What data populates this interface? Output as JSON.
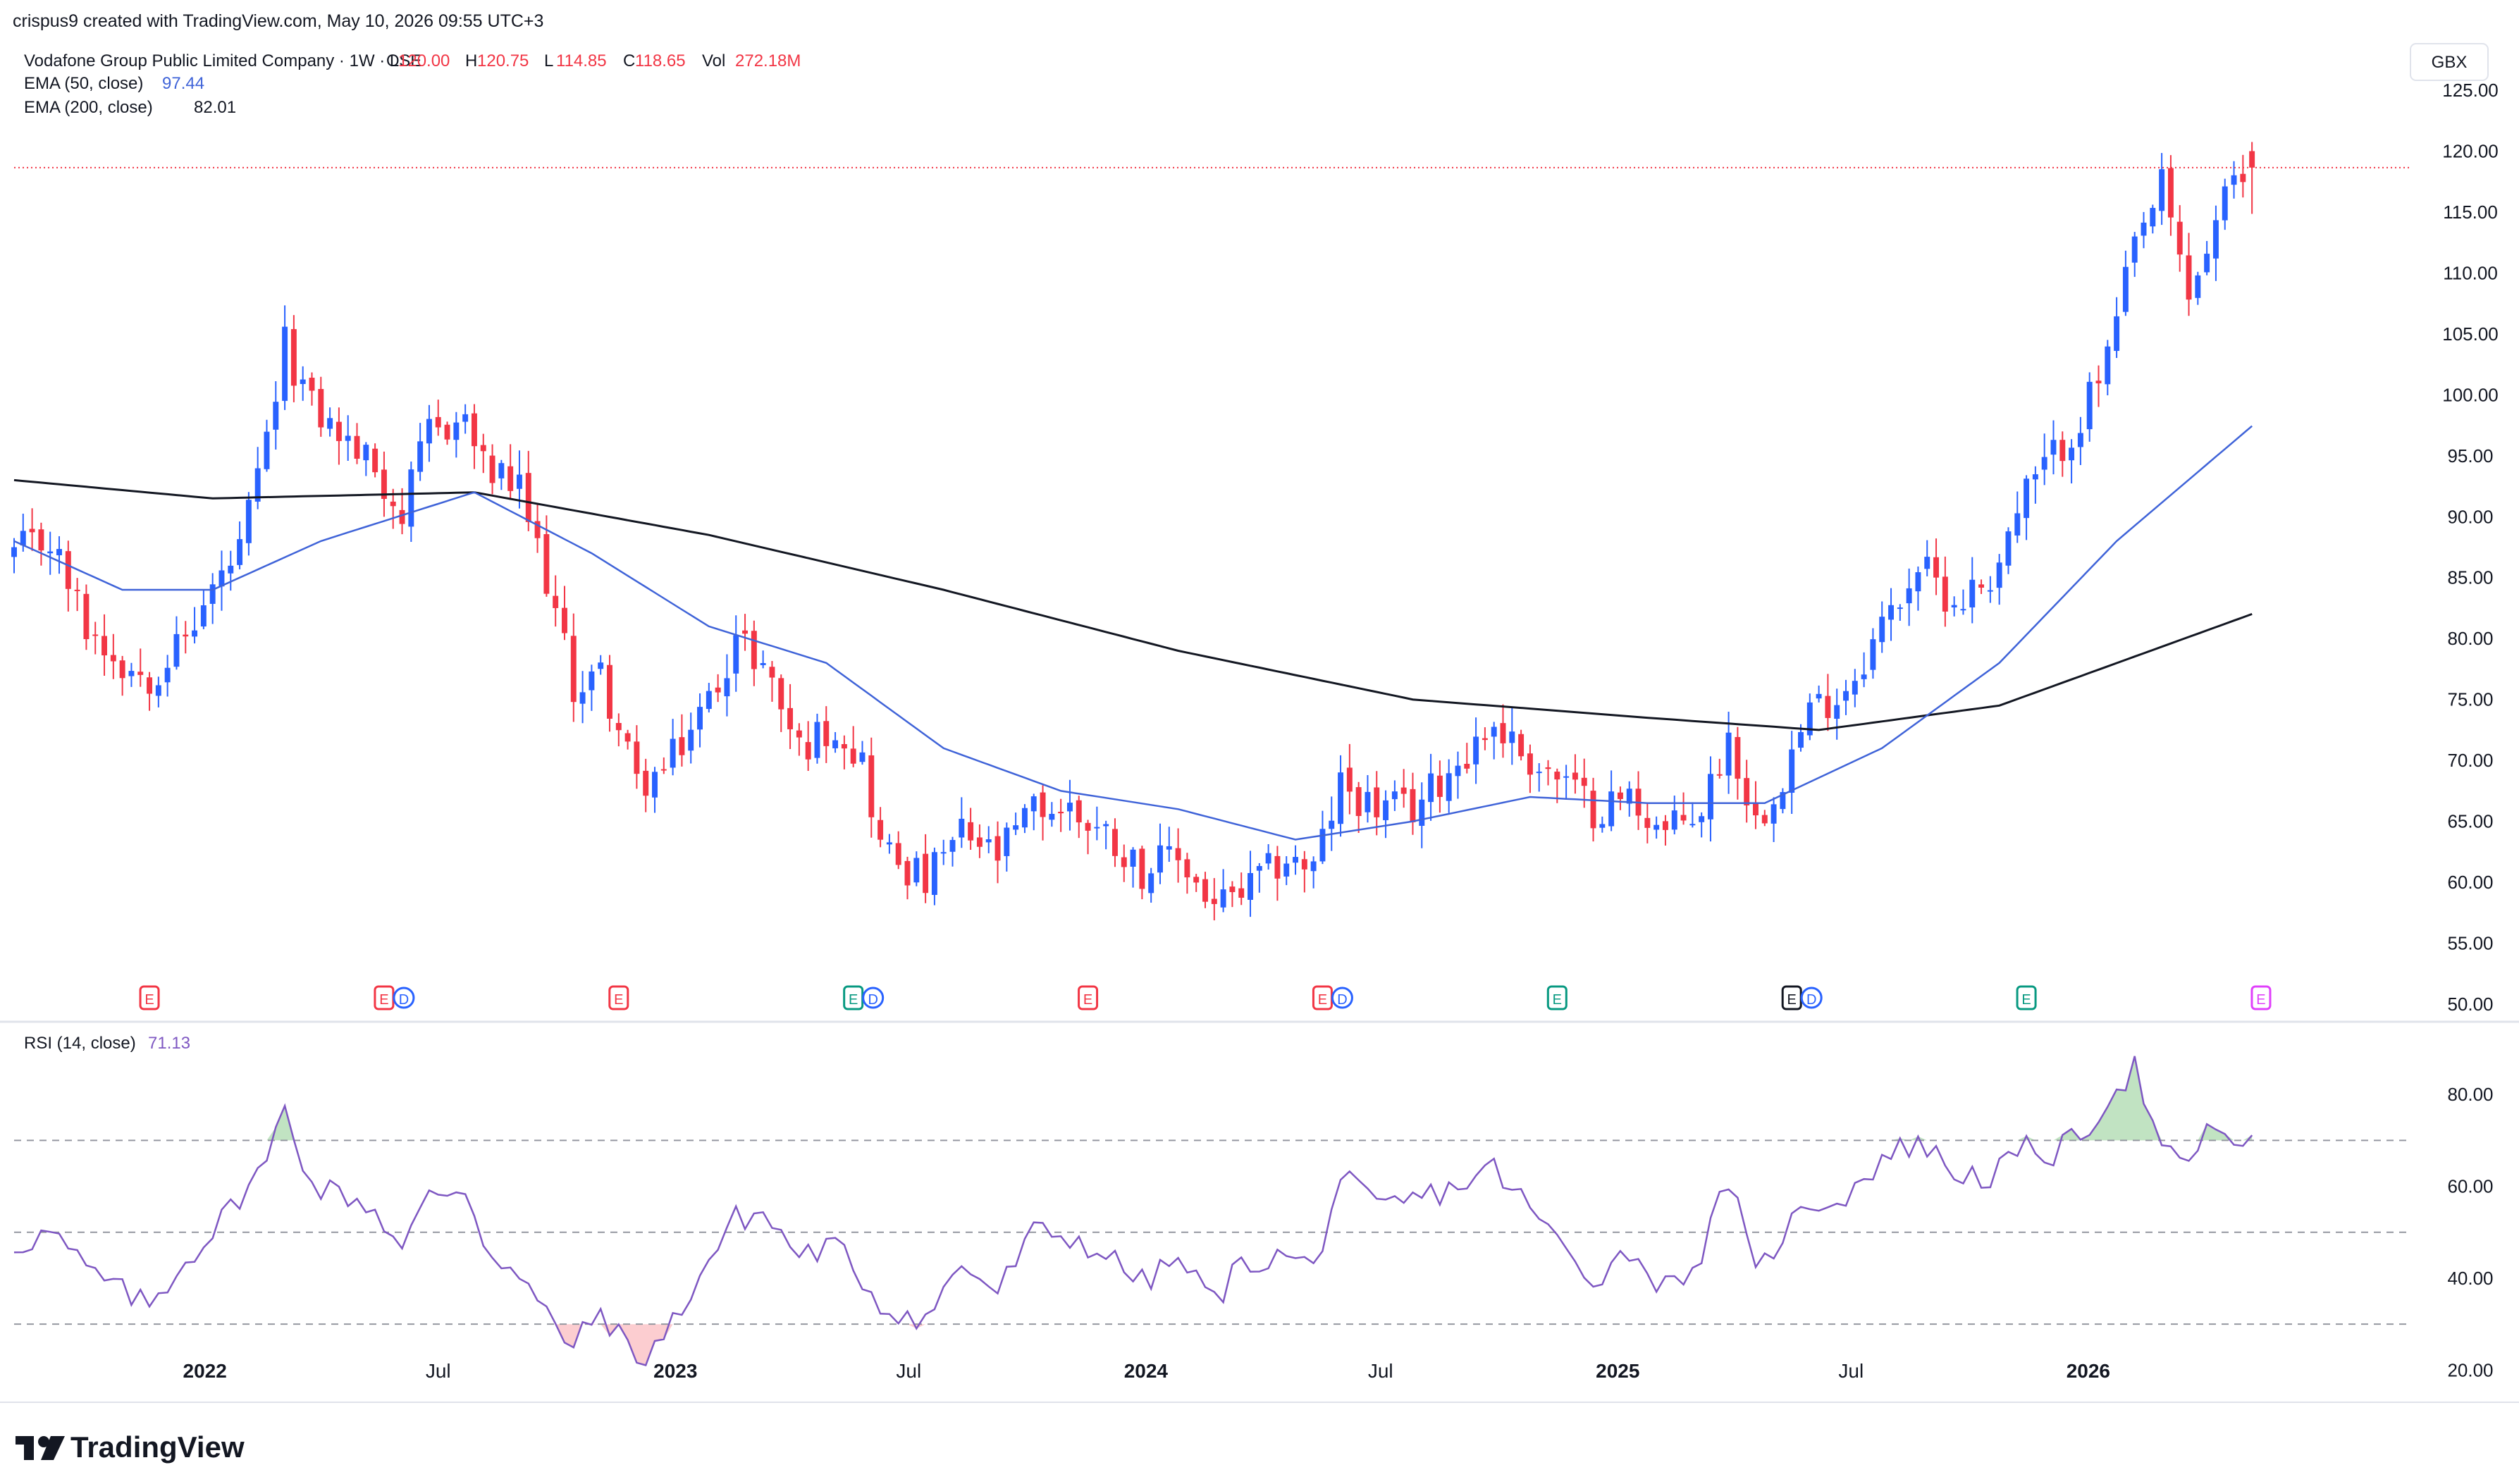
{
  "header": {
    "created_by": "crispus9 created with TradingView.com, May 10, 2026 09:55 UTC+3",
    "symbol_title": "Vodafone Group Public Limited Company · 1W · LSE",
    "ohlcv": [
      {
        "label": "O",
        "value": "120.00"
      },
      {
        "label": "H",
        "value": "120.75"
      },
      {
        "label": "L",
        "value": "114.85"
      },
      {
        "label": "C",
        "value": "118.65"
      },
      {
        "label": "Vol",
        "value": "272.18M"
      }
    ],
    "currency": "GBX"
  },
  "indicators": {
    "ema50": {
      "label": "EMA (50, close)",
      "value": "97.44",
      "color": "#3f63d8"
    },
    "ema200": {
      "label": "EMA (200, close)",
      "value": "82.01",
      "color": "#131722"
    },
    "rsi": {
      "label": "RSI (14, close)",
      "value": "71.13",
      "color": "#7e57c2"
    }
  },
  "colors": {
    "up": "#2962ff",
    "up_alt": "#089981",
    "down": "#f23645",
    "grid": "#f0f3fa",
    "axis_text": "#131722",
    "last_price_line": "#f23645"
  },
  "branding": {
    "logo_text": "TradingView",
    "logo_icon": "tradingview-logo-icon"
  },
  "chart_data": [
    {
      "type": "candlestick",
      "title": "Vodafone Group Public Limited Company · 1W · LSE",
      "unit": "GBX",
      "y_ticks": [
        "125.00",
        "120.00",
        "115.00",
        "110.00",
        "105.00",
        "100.00",
        "95.00",
        "90.00",
        "85.00",
        "80.00",
        "75.00",
        "70.00",
        "65.00",
        "60.00",
        "55.00",
        "50.00"
      ],
      "ylim": [
        50,
        125
      ],
      "x_ticks": [
        "2022",
        "Jul",
        "2023",
        "Jul",
        "2024",
        "Jul",
        "2025",
        "Jul",
        "2026"
      ],
      "x_tick_dates": [
        "2022-01-01",
        "2022-07-01",
        "2023-01-01",
        "2023-07-01",
        "2024-01-01",
        "2024-07-01",
        "2025-01-01",
        "2025-07-01",
        "2026-01-01"
      ],
      "xlim": [
        "2021-08-06",
        "2026-08-28"
      ],
      "last_price": 118.65,
      "anchors_close": [
        [
          "2021-08-06",
          87
        ],
        [
          "2021-09-03",
          88
        ],
        [
          "2021-10-01",
          81
        ],
        [
          "2021-10-29",
          78
        ],
        [
          "2021-11-19",
          77
        ],
        [
          "2021-12-17",
          80
        ],
        [
          "2022-01-07",
          84
        ],
        [
          "2022-01-28",
          87
        ],
        [
          "2022-02-18",
          96
        ],
        [
          "2022-03-04",
          104
        ],
        [
          "2022-03-25",
          99
        ],
        [
          "2022-04-22",
          96
        ],
        [
          "2022-05-13",
          94
        ],
        [
          "2022-06-03",
          90
        ],
        [
          "2022-06-24",
          97
        ],
        [
          "2022-07-22",
          98
        ],
        [
          "2022-08-05",
          94
        ],
        [
          "2022-09-02",
          92
        ],
        [
          "2022-09-23",
          85
        ],
        [
          "2022-10-14",
          76
        ],
        [
          "2022-11-04",
          77
        ],
        [
          "2022-12-02",
          68
        ],
        [
          "2022-12-23",
          69
        ],
        [
          "2023-01-27",
          75
        ],
        [
          "2023-02-17",
          80
        ],
        [
          "2023-03-10",
          78
        ],
        [
          "2023-04-07",
          71
        ],
        [
          "2023-05-05",
          73
        ],
        [
          "2023-05-26",
          70
        ],
        [
          "2023-06-09",
          63
        ],
        [
          "2023-07-14",
          60
        ],
        [
          "2023-08-11",
          64
        ],
        [
          "2023-09-08",
          62
        ],
        [
          "2023-10-06",
          66
        ],
        [
          "2023-11-03",
          66
        ],
        [
          "2023-12-01",
          64
        ],
        [
          "2023-12-29",
          61
        ],
        [
          "2024-01-26",
          62
        ],
        [
          "2024-02-23",
          58
        ],
        [
          "2024-03-15",
          59
        ],
        [
          "2024-04-19",
          62
        ],
        [
          "2024-05-10",
          61
        ],
        [
          "2024-05-31",
          68
        ],
        [
          "2024-06-28",
          66
        ],
        [
          "2024-07-26",
          66
        ],
        [
          "2024-08-30",
          70
        ],
        [
          "2024-09-27",
          73
        ],
        [
          "2024-10-25",
          70
        ],
        [
          "2024-11-22",
          68
        ],
        [
          "2024-12-13",
          66
        ],
        [
          "2025-01-10",
          67
        ],
        [
          "2025-02-07",
          64
        ],
        [
          "2025-03-07",
          66
        ],
        [
          "2025-03-28",
          72
        ],
        [
          "2025-04-18",
          65
        ],
        [
          "2025-05-09",
          69
        ],
        [
          "2025-05-30",
          74
        ],
        [
          "2025-06-27",
          76
        ],
        [
          "2025-07-25",
          81
        ],
        [
          "2025-08-22",
          86
        ],
        [
          "2025-09-19",
          83
        ],
        [
          "2025-10-17",
          85
        ],
        [
          "2025-11-14",
          92
        ],
        [
          "2025-12-05",
          95
        ],
        [
          "2025-12-26",
          98
        ],
        [
          "2026-01-16",
          103
        ],
        [
          "2026-02-06",
          112
        ],
        [
          "2026-02-27",
          117
        ],
        [
          "2026-03-20",
          108
        ],
        [
          "2026-04-03",
          112
        ],
        [
          "2026-04-17",
          116
        ],
        [
          "2026-05-08",
          118.65
        ]
      ],
      "ema50_anchors": [
        [
          "2021-08-06",
          88
        ],
        [
          "2021-10-29",
          84
        ],
        [
          "2022-01-07",
          84
        ],
        [
          "2022-04-01",
          88
        ],
        [
          "2022-07-29",
          92
        ],
        [
          "2022-10-28",
          87
        ],
        [
          "2023-01-27",
          81
        ],
        [
          "2023-04-28",
          78
        ],
        [
          "2023-07-28",
          71
        ],
        [
          "2023-10-27",
          67.5
        ],
        [
          "2024-01-26",
          66
        ],
        [
          "2024-04-26",
          63.5
        ],
        [
          "2024-07-26",
          65
        ],
        [
          "2024-10-25",
          67
        ],
        [
          "2025-01-24",
          66.5
        ],
        [
          "2025-04-25",
          66.5
        ],
        [
          "2025-07-25",
          71
        ],
        [
          "2025-10-24",
          78
        ],
        [
          "2026-01-23",
          88
        ],
        [
          "2026-05-08",
          97.44
        ]
      ],
      "ema200_anchors": [
        [
          "2021-08-06",
          93
        ],
        [
          "2022-01-07",
          91.5
        ],
        [
          "2022-07-29",
          92
        ],
        [
          "2023-01-27",
          88.5
        ],
        [
          "2023-07-28",
          84
        ],
        [
          "2024-01-26",
          79
        ],
        [
          "2024-07-26",
          75
        ],
        [
          "2025-01-24",
          73.5
        ],
        [
          "2025-06-06",
          72.5
        ],
        [
          "2025-10-24",
          74.5
        ],
        [
          "2026-05-08",
          82.01
        ]
      ],
      "events": [
        {
          "date": "2021-11-19",
          "labels": [
            "E"
          ],
          "color": "#f23645"
        },
        {
          "date": "2022-05-20",
          "labels": [
            "E",
            "D"
          ],
          "color": "#f23645"
        },
        {
          "date": "2022-11-18",
          "labels": [
            "E"
          ],
          "color": "#f23645"
        },
        {
          "date": "2023-05-19",
          "labels": [
            "E",
            "D"
          ],
          "color": "#089981"
        },
        {
          "date": "2023-11-17",
          "labels": [
            "E"
          ],
          "color": "#f23645"
        },
        {
          "date": "2024-05-17",
          "labels": [
            "E",
            "D"
          ],
          "color": "#f23645"
        },
        {
          "date": "2024-11-15",
          "labels": [
            "E"
          ],
          "color": "#089981"
        },
        {
          "date": "2025-05-16",
          "labels": [
            "E",
            "D"
          ],
          "color": "#131722"
        },
        {
          "date": "2025-11-14",
          "labels": [
            "E"
          ],
          "color": "#089981"
        },
        {
          "date": "2026-05-15",
          "labels": [
            "E"
          ],
          "color": "#e040fb"
        }
      ]
    },
    {
      "type": "line",
      "title": "RSI (14, close)",
      "y_ticks": [
        "80.00",
        "60.00",
        "40.00",
        "20.00"
      ],
      "ylim": [
        13,
        92
      ],
      "levels": [
        70,
        50,
        30
      ],
      "series": [
        {
          "name": "RSI (14, close)",
          "anchors": [
            [
              "2021-08-06",
              47
            ],
            [
              "2021-09-03",
              50
            ],
            [
              "2021-10-01",
              42
            ],
            [
              "2021-10-29",
              37
            ],
            [
              "2021-11-19",
              34
            ],
            [
              "2021-12-17",
              44
            ],
            [
              "2022-01-07",
              50
            ],
            [
              "2022-01-28",
              58
            ],
            [
              "2022-02-18",
              65
            ],
            [
              "2022-03-04",
              78
            ],
            [
              "2022-03-25",
              60
            ],
            [
              "2022-04-22",
              58
            ],
            [
              "2022-05-13",
              55
            ],
            [
              "2022-06-03",
              46
            ],
            [
              "2022-06-24",
              58
            ],
            [
              "2022-07-22",
              60
            ],
            [
              "2022-08-05",
              48
            ],
            [
              "2022-09-02",
              40
            ],
            [
              "2022-09-23",
              32
            ],
            [
              "2022-10-14",
              25
            ],
            [
              "2022-11-04",
              33
            ],
            [
              "2022-12-02",
              22
            ],
            [
              "2022-12-23",
              27
            ],
            [
              "2023-01-27",
              44
            ],
            [
              "2023-02-17",
              53
            ],
            [
              "2023-03-10",
              54
            ],
            [
              "2023-04-07",
              45
            ],
            [
              "2023-05-05",
              47
            ],
            [
              "2023-05-26",
              40
            ],
            [
              "2023-06-09",
              34
            ],
            [
              "2023-07-14",
              31
            ],
            [
              "2023-08-11",
              43
            ],
            [
              "2023-09-08",
              37
            ],
            [
              "2023-10-06",
              50
            ],
            [
              "2023-11-03",
              49
            ],
            [
              "2023-12-01",
              45
            ],
            [
              "2023-12-29",
              39
            ],
            [
              "2024-01-26",
              44
            ],
            [
              "2024-02-23",
              35
            ],
            [
              "2024-03-15",
              43
            ],
            [
              "2024-04-19",
              45
            ],
            [
              "2024-05-10",
              42
            ],
            [
              "2024-05-31",
              62
            ],
            [
              "2024-06-28",
              55
            ],
            [
              "2024-07-26",
              57
            ],
            [
              "2024-08-30",
              60
            ],
            [
              "2024-09-27",
              64
            ],
            [
              "2024-10-25",
              55
            ],
            [
              "2024-11-22",
              46
            ],
            [
              "2024-12-13",
              40
            ],
            [
              "2025-01-10",
              46
            ],
            [
              "2025-02-07",
              38
            ],
            [
              "2025-03-07",
              45
            ],
            [
              "2025-03-28",
              62
            ],
            [
              "2025-04-18",
              40
            ],
            [
              "2025-05-09",
              50
            ],
            [
              "2025-05-30",
              56
            ],
            [
              "2025-06-27",
              58
            ],
            [
              "2025-07-25",
              66
            ],
            [
              "2025-08-22",
              70
            ],
            [
              "2025-09-19",
              63
            ],
            [
              "2025-10-17",
              62
            ],
            [
              "2025-11-14",
              68
            ],
            [
              "2025-12-05",
              67
            ],
            [
              "2025-12-26",
              71
            ],
            [
              "2026-01-16",
              79
            ],
            [
              "2026-02-06",
              86
            ],
            [
              "2026-02-27",
              67
            ],
            [
              "2026-03-20",
              64
            ],
            [
              "2026-04-03",
              74
            ],
            [
              "2026-04-17",
              69
            ],
            [
              "2026-05-08",
              71.13
            ]
          ]
        }
      ]
    }
  ]
}
